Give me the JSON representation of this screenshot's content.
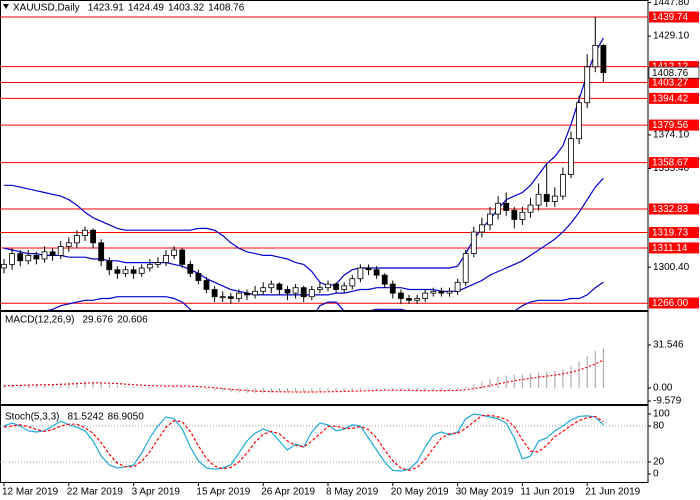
{
  "chart_data": [
    {
      "type": "candlestick",
      "title": "XAUUSD,Daily",
      "header_values": [
        1423.91,
        1424.49,
        1403.32,
        1408.76
      ],
      "categories": [
        "12 Mar 2019",
        null,
        null,
        null,
        null,
        null,
        null,
        null,
        "22 Mar 2019",
        null,
        null,
        null,
        null,
        null,
        null,
        null,
        "3 Apr 2019",
        null,
        null,
        null,
        null,
        null,
        null,
        null,
        "15 Apr 2019",
        null,
        null,
        null,
        null,
        null,
        null,
        null,
        "26 Apr 2019",
        null,
        null,
        null,
        null,
        null,
        null,
        null,
        "8 May 2019",
        null,
        null,
        null,
        null,
        null,
        null,
        null,
        "20 May 2019",
        null,
        null,
        null,
        null,
        null,
        null,
        null,
        "30 May 2019",
        null,
        null,
        null,
        null,
        null,
        null,
        null,
        "11 Jun 2019",
        null,
        null,
        null,
        null,
        null,
        null,
        null,
        "21 Jun 2019",
        null,
        null
      ],
      "open": [
        1300,
        1302,
        1308,
        1304,
        1307,
        1305,
        1309,
        1307,
        1312,
        1314,
        1318,
        1321,
        1314,
        1304,
        1299,
        1297,
        1299,
        1297,
        1300,
        1302,
        1303,
        1307,
        1310,
        1302,
        1297,
        1293,
        1288,
        1284,
        1284,
        1283,
        1286,
        1285,
        1287,
        1289,
        1291,
        1288,
        1286,
        1289,
        1284,
        1288,
        1289,
        1291,
        1288,
        1290,
        1294,
        1300,
        1299,
        1296,
        1291,
        1286,
        1283,
        1282,
        1283,
        1286,
        1287,
        1286,
        1287,
        1292,
        1308,
        1320,
        1324,
        1330,
        1336,
        1332,
        1327,
        1331,
        1335,
        1341,
        1337,
        1340,
        1352,
        1372,
        1392,
        1412,
        1423.91
      ],
      "high": [
        1305,
        1311,
        1310,
        1310,
        1309,
        1312,
        1311,
        1315,
        1317,
        1321,
        1323,
        1322,
        1316,
        1306,
        1301,
        1301,
        1301,
        1302,
        1305,
        1306,
        1310,
        1312,
        1311,
        1304,
        1299,
        1295,
        1290,
        1287,
        1286,
        1288,
        1288,
        1290,
        1292,
        1293,
        1292,
        1290,
        1291,
        1290,
        1290,
        1292,
        1293,
        1292,
        1292,
        1296,
        1302,
        1302,
        1301,
        1297,
        1293,
        1288,
        1285,
        1285,
        1288,
        1289,
        1289,
        1289,
        1294,
        1310,
        1323,
        1328,
        1334,
        1340,
        1342,
        1334,
        1334,
        1339,
        1347,
        1358,
        1345,
        1356,
        1376,
        1396,
        1419,
        1439.74,
        1424.49
      ],
      "low": [
        1297,
        1299,
        1301,
        1302,
        1302,
        1303,
        1304,
        1305,
        1309,
        1311,
        1315,
        1311,
        1301,
        1296,
        1294,
        1295,
        1294,
        1295,
        1298,
        1300,
        1301,
        1305,
        1300,
        1295,
        1291,
        1286,
        1281,
        1281,
        1280,
        1281,
        1282,
        1283,
        1285,
        1286,
        1285,
        1282,
        1283,
        1281,
        1282,
        1286,
        1287,
        1286,
        1286,
        1288,
        1292,
        1296,
        1294,
        1289,
        1283,
        1280,
        1280,
        1280,
        1281,
        1284,
        1284,
        1284,
        1285,
        1290,
        1306,
        1317,
        1321,
        1327,
        1329,
        1322,
        1324,
        1328,
        1332,
        1334,
        1334,
        1338,
        1350,
        1369,
        1389,
        1409,
        1403.32
      ],
      "close": [
        1302,
        1308,
        1304,
        1307,
        1305,
        1309,
        1307,
        1312,
        1314,
        1318,
        1321,
        1314,
        1304,
        1299,
        1297,
        1299,
        1297,
        1300,
        1302,
        1303,
        1307,
        1310,
        1302,
        1297,
        1293,
        1288,
        1284,
        1284,
        1283,
        1286,
        1285,
        1287,
        1289,
        1291,
        1288,
        1286,
        1289,
        1284,
        1288,
        1289,
        1291,
        1288,
        1290,
        1294,
        1300,
        1299,
        1296,
        1291,
        1286,
        1283,
        1282,
        1283,
        1286,
        1287,
        1286,
        1287,
        1292,
        1308,
        1320,
        1324,
        1330,
        1336,
        1332,
        1327,
        1331,
        1335,
        1341,
        1337,
        1340,
        1352,
        1372,
        1392,
        1412,
        1423.91,
        1408.76
      ],
      "upper": [
        1346,
        1346,
        1345,
        1344,
        1343,
        1342,
        1341,
        1340,
        1338,
        1335,
        1331,
        1328,
        1326,
        1324,
        1322,
        1321,
        1321,
        1321,
        1321,
        1321,
        1321,
        1321,
        1321,
        1321,
        1322,
        1322,
        1321,
        1318,
        1314,
        1311,
        1309,
        1308,
        1307,
        1307,
        1306,
        1305,
        1303,
        1302,
        1298,
        1292,
        1290,
        1291,
        1296,
        1299,
        1300,
        1300,
        1300,
        1300,
        1300,
        1300,
        1300,
        1300,
        1300,
        1300,
        1300,
        1300,
        1301,
        1308,
        1316,
        1322,
        1327,
        1333,
        1338,
        1340,
        1342,
        1346,
        1352,
        1358,
        1362,
        1368,
        1380,
        1394,
        1408,
        1420,
        1428
      ],
      "middle": [
        1311,
        1310,
        1309,
        1308,
        1308,
        1307,
        1307,
        1307,
        1306,
        1306,
        1306,
        1305,
        1305,
        1304,
        1304,
        1303,
        1303,
        1303,
        1303,
        1303,
        1303,
        1302,
        1301,
        1299,
        1297,
        1294,
        1292,
        1290,
        1288,
        1287,
        1286,
        1285,
        1285,
        1285,
        1285,
        1285,
        1285,
        1285,
        1285,
        1285,
        1285,
        1286,
        1286,
        1287,
        1288,
        1288,
        1289,
        1289,
        1289,
        1289,
        1288,
        1288,
        1288,
        1288,
        1287,
        1287,
        1287,
        1289,
        1291,
        1293,
        1296,
        1298,
        1300,
        1302,
        1304,
        1307,
        1310,
        1313,
        1316,
        1320,
        1325,
        1331,
        1338,
        1345,
        1350
      ],
      "lower": [
        1276,
        1275,
        1274,
        1274,
        1275,
        1276,
        1277,
        1279,
        1280,
        1281,
        1282,
        1282,
        1283,
        1283,
        1284,
        1284,
        1284,
        1284,
        1284,
        1284,
        1284,
        1283,
        1281,
        1277,
        1272,
        1267,
        1263,
        1261,
        1261,
        1262,
        1263,
        1263,
        1263,
        1263,
        1264,
        1265,
        1267,
        1268,
        1272,
        1279,
        1281,
        1281,
        1276,
        1275,
        1276,
        1276,
        1277,
        1277,
        1277,
        1277,
        1276,
        1276,
        1276,
        1276,
        1275,
        1275,
        1273,
        1270,
        1266,
        1264,
        1264,
        1268,
        1272,
        1276,
        1279,
        1281,
        1282,
        1282,
        1282,
        1282,
        1283,
        1283,
        1285,
        1289,
        1292
      ],
      "band_color": "#0000cc",
      "up_color": "#ffffff",
      "down_color": "#000000",
      "levels": [
        1439.74,
        1412.12,
        1403.27,
        1394.42,
        1379.56,
        1358.67,
        1332.83,
        1319.73,
        1311.14,
        1280.37,
        {
          "value": 1266,
          "label": "1266.00"
        }
      ],
      "level_color": "#ff0000",
      "current_price": 1408.76,
      "ylim": [
        1277.7,
        1449.2
      ],
      "yticks": [
        {
          "value": 1447.8,
          "label": "1447.80"
        },
        {
          "value": 1429.1,
          "label": "1429.10"
        },
        {
          "value": 1374.1,
          "label": "1374.10"
        },
        {
          "value": 1355.4,
          "label": "1355.40"
        },
        {
          "value": 1300.4,
          "label": "1300.40"
        }
      ]
    },
    {
      "type": "macd",
      "title": "MACD(12,26,9)",
      "header_values": [
        29.676,
        20.606
      ],
      "values": [
        2,
        2.5,
        2.5,
        2.8,
        2.8,
        3,
        3,
        3.4,
        3.8,
        4.3,
        4.8,
        4.6,
        3.6,
        2.6,
        1.8,
        1.2,
        0.8,
        0.6,
        0.6,
        0.8,
        1.2,
        1.6,
        1.4,
        0.8,
        0,
        -1,
        -2,
        -2.6,
        -3.2,
        -3.4,
        -3.6,
        -3.6,
        -3.4,
        -3.2,
        -3.2,
        -3.2,
        -3,
        -3,
        -2.8,
        -2.6,
        -2.4,
        -2.2,
        -2,
        -1.8,
        -1.2,
        -1,
        -1,
        -1.2,
        -1.6,
        -2,
        -2.2,
        -2.4,
        -2.2,
        -2,
        -1.8,
        -1.6,
        -1.2,
        0.6,
        2.8,
        4.6,
        6.4,
        8.2,
        9.2,
        9.6,
        10,
        10.6,
        11.4,
        11.8,
        12.4,
        13.6,
        16.2,
        19.6,
        23.4,
        27.2,
        29.676
      ],
      "signal": [
        1.5,
        1.7,
        1.9,
        2.1,
        2.2,
        2.4,
        2.5,
        2.7,
        2.9,
        3.2,
        3.5,
        3.8,
        3.7,
        3.5,
        3.2,
        2.8,
        2.4,
        2,
        1.7,
        1.5,
        1.4,
        1.4,
        1.4,
        1.3,
        1,
        0.6,
        0.1,
        -0.5,
        -1,
        -1.5,
        -1.9,
        -2.3,
        -2.5,
        -2.7,
        -2.8,
        -2.9,
        -3,
        -3,
        -3,
        -2.9,
        -2.8,
        -2.7,
        -2.5,
        -2.4,
        -2.2,
        -2,
        -1.8,
        -1.7,
        -1.7,
        -1.7,
        -1.8,
        -1.9,
        -2,
        -2,
        -2,
        -1.9,
        -1.8,
        -1.3,
        -0.5,
        0.5,
        1.7,
        3,
        4.2,
        5.3,
        6.2,
        7.1,
        8,
        8.7,
        9.4,
        10.3,
        11.5,
        13.1,
        15.2,
        17.6,
        20.606
      ],
      "color": "#b0b0b0",
      "signal_color": "#ff0000",
      "ylim": [
        -9.579,
        31.546
      ],
      "yticks": [
        31.546,
        {
          "value": 0,
          "label": "0.00"
        },
        -9.579
      ]
    },
    {
      "type": "stochastic",
      "title": "Stoch(5,3,3)",
      "header_values": [
        81.5242,
        {
          "value": 86.905,
          "label": "86.9050"
        }
      ],
      "values": [
        80,
        85,
        80,
        72,
        70,
        72,
        80,
        88,
        82,
        78,
        72,
        55,
        30,
        15,
        10,
        12,
        15,
        35,
        60,
        80,
        95,
        92,
        75,
        45,
        22,
        10,
        8,
        10,
        15,
        35,
        55,
        68,
        75,
        70,
        55,
        40,
        50,
        45,
        70,
        85,
        82,
        72,
        75,
        82,
        80,
        60,
        40,
        20,
        6,
        5,
        8,
        20,
        45,
        65,
        70,
        65,
        70,
        92,
        100,
        98,
        95,
        92,
        85,
        60,
        25,
        30,
        55,
        60,
        72,
        80,
        90,
        96,
        97,
        95,
        81.5242
      ],
      "signal": [
        78,
        80,
        82,
        79,
        74,
        71,
        74,
        80,
        83,
        83,
        77,
        68,
        52,
        33,
        18,
        12,
        12,
        21,
        37,
        58,
        78,
        89,
        87,
        71,
        47,
        26,
        13,
        9,
        11,
        20,
        35,
        53,
        66,
        71,
        67,
        55,
        48,
        45,
        55,
        67,
        79,
        80,
        76,
        76,
        79,
        74,
        60,
        40,
        22,
        10,
        6,
        11,
        24,
        43,
        60,
        67,
        68,
        76,
        87,
        97,
        98,
        95,
        91,
        79,
        57,
        38,
        37,
        48,
        62,
        71,
        81,
        89,
        94,
        96,
        86.905
      ],
      "color": "#20a8d8",
      "signal_color": "#ff0000",
      "levels": [
        80,
        20
      ],
      "ylim": [
        0,
        100
      ],
      "yticks": [
        100,
        80,
        20,
        0
      ]
    }
  ]
}
